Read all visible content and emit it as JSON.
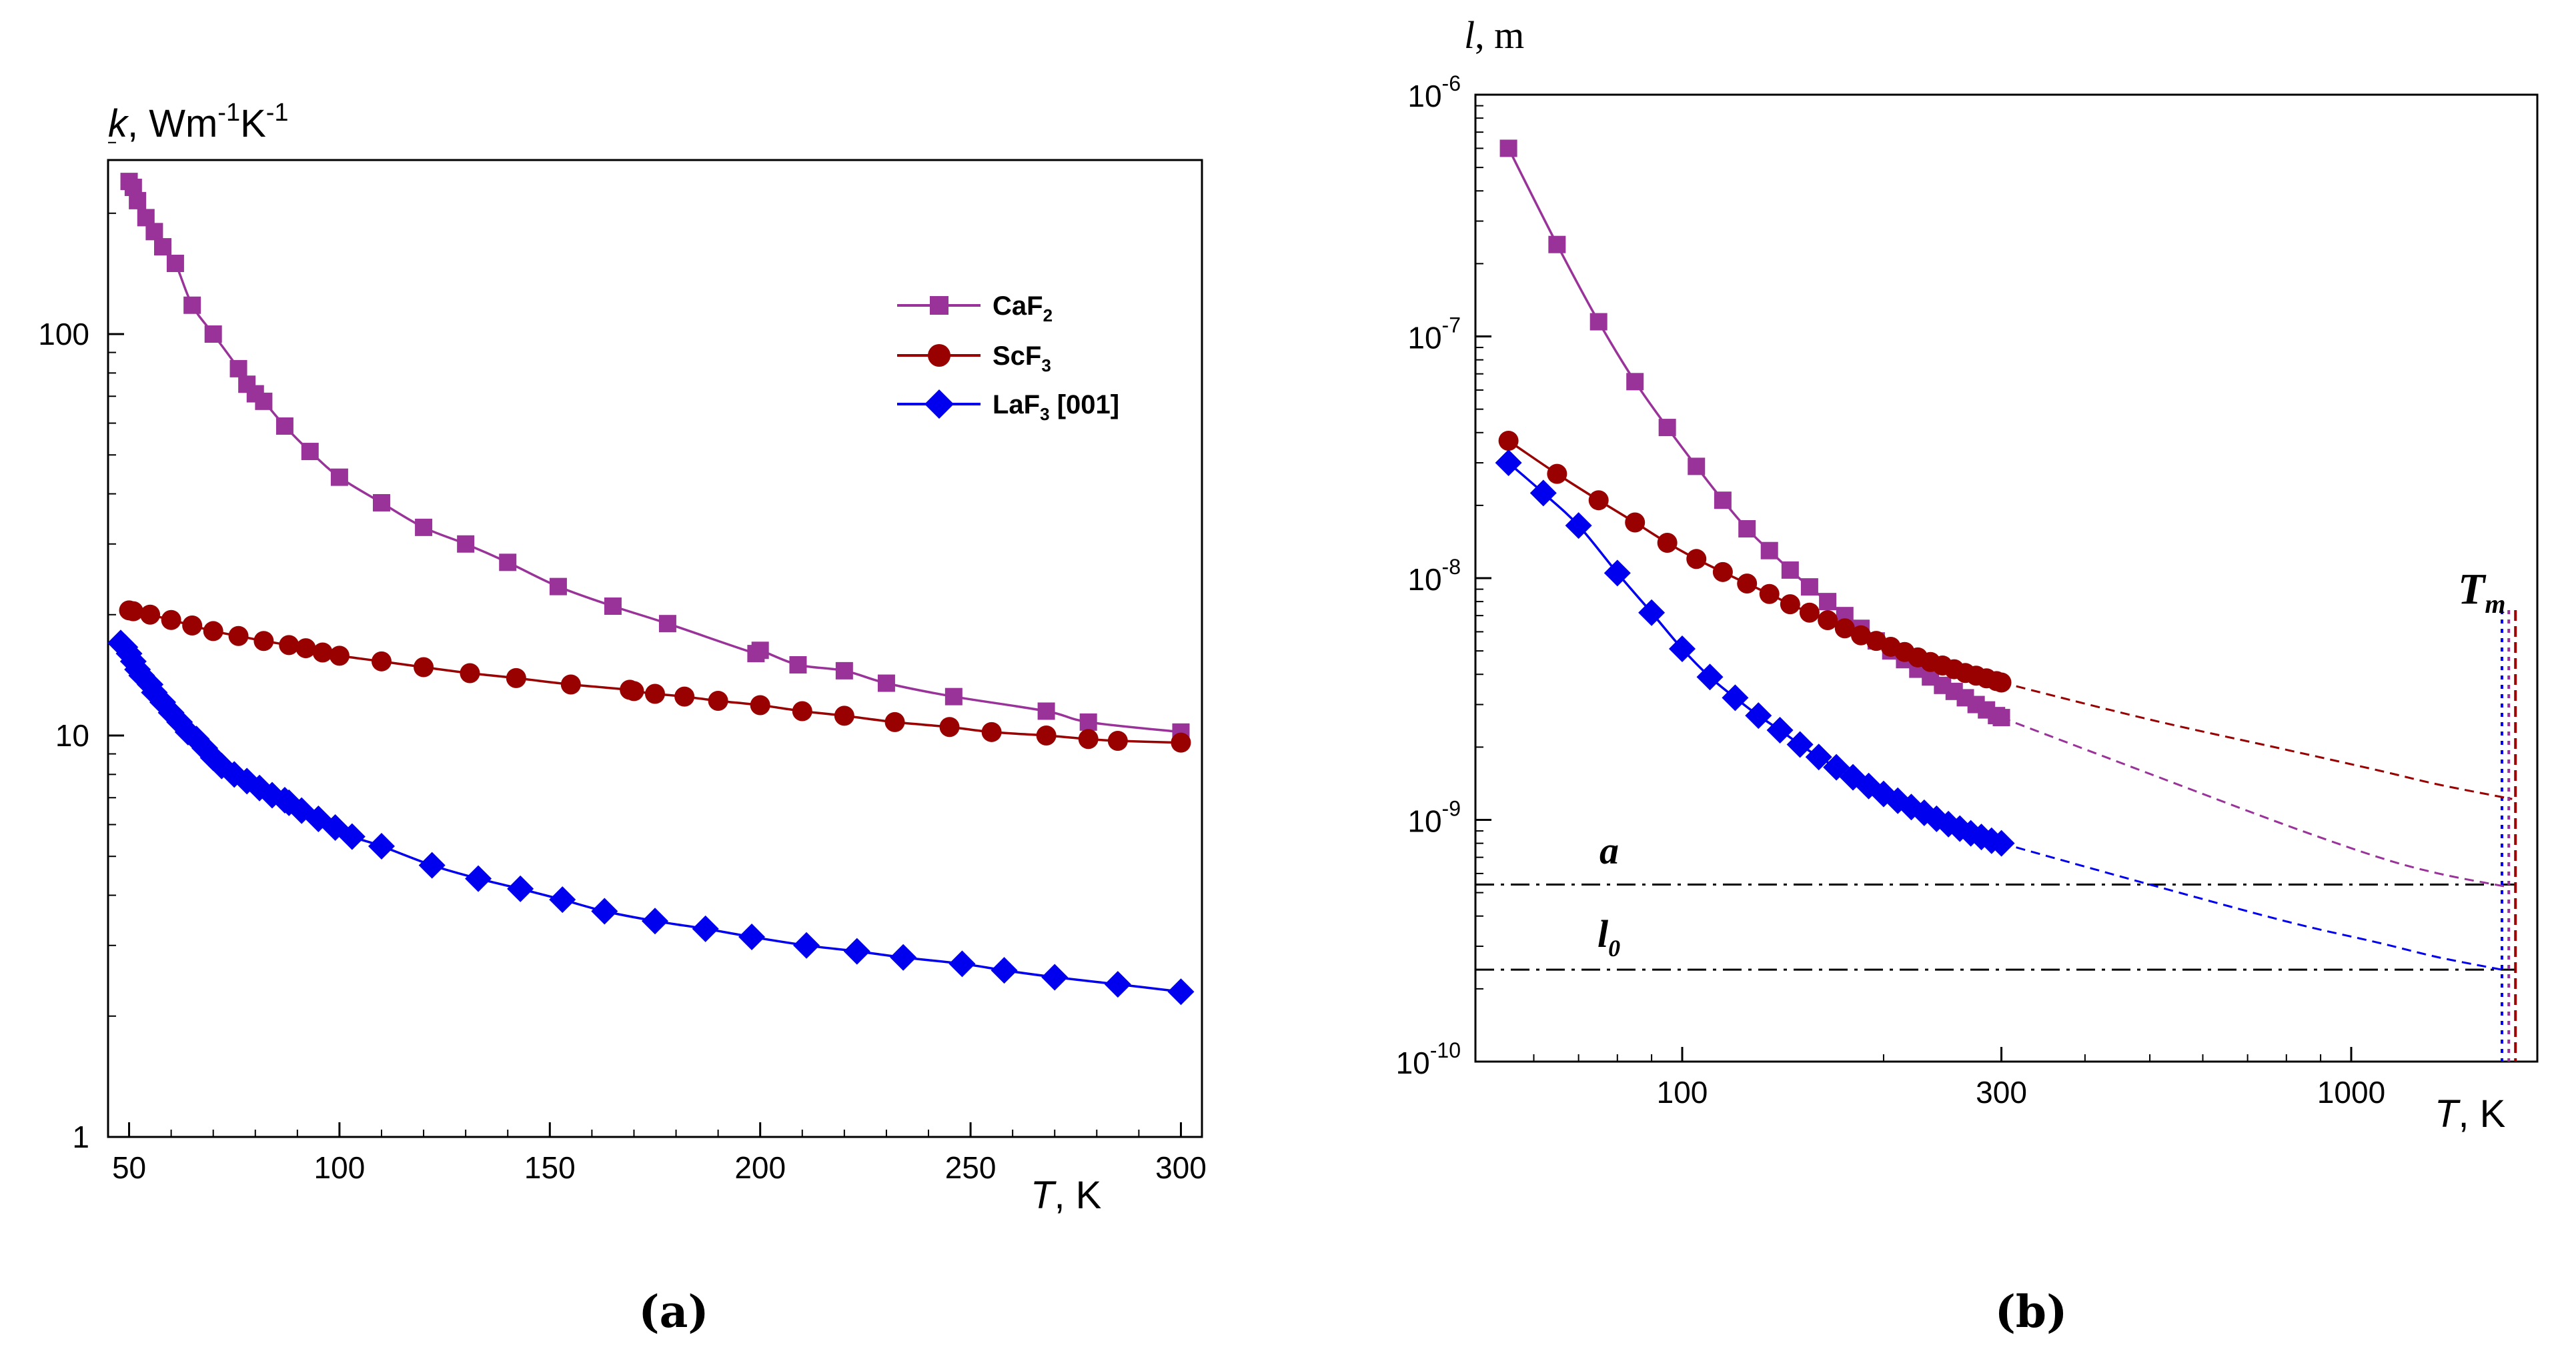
{
  "panels": {
    "a": "(a)",
    "b": "(b)"
  },
  "chart_data": [
    {
      "type": "line",
      "panel": "(a)",
      "xscale": "linear",
      "yscale": "log",
      "xlim": [
        45,
        305
      ],
      "ylim": [
        1,
        300
      ],
      "xticks": [
        50,
        100,
        150,
        200,
        250,
        300
      ],
      "xtick_labels": [
        "50",
        "100",
        "150",
        "200",
        "250",
        "300"
      ],
      "yticks": [
        1,
        10,
        100
      ],
      "ytick_labels": [
        "1",
        "10",
        "100"
      ],
      "xlabel": {
        "var": "T",
        "unit": ", K"
      },
      "ylabel": {
        "var": "k",
        "unit": ", Wm",
        "exp1": "-1",
        "mid": "K",
        "exp2": "-1"
      },
      "legend_position": "top-right",
      "series": [
        {
          "name": "CaF",
          "sub": "2",
          "color": "#993399",
          "marker": "square",
          "x": [
            50,
            51,
            52,
            54,
            56,
            58,
            61,
            65,
            70,
            76,
            78,
            80,
            82,
            87,
            93,
            100,
            110,
            120,
            130,
            140,
            152,
            165,
            178,
            199,
            200,
            209,
            220,
            230,
            246,
            268,
            278,
            300
          ],
          "y": [
            240,
            232,
            215,
            195,
            180,
            165,
            150,
            118,
            100,
            82,
            75,
            71,
            68,
            59,
            51,
            44,
            38,
            33,
            30,
            27,
            23.5,
            21,
            19,
            16,
            16.3,
            15,
            14.5,
            13.5,
            12.5,
            11.5,
            10.8,
            10.2
          ]
        },
        {
          "name": "ScF",
          "sub": "3",
          "color": "#990000",
          "marker": "circle",
          "x": [
            50,
            51,
            55,
            60,
            65,
            70,
            76,
            82,
            88,
            92,
            96,
            100,
            110,
            120,
            131,
            142,
            155,
            169,
            170,
            175,
            182,
            190,
            200,
            210,
            220,
            232,
            245,
            255,
            268,
            278,
            285,
            300
          ],
          "y": [
            20.5,
            20.4,
            20,
            19.4,
            18.8,
            18.2,
            17.7,
            17.2,
            16.8,
            16.5,
            16.1,
            15.8,
            15.3,
            14.8,
            14.3,
            13.9,
            13.4,
            13,
            12.9,
            12.7,
            12.5,
            12.2,
            11.9,
            11.5,
            11.2,
            10.8,
            10.5,
            10.2,
            10,
            9.8,
            9.7,
            9.6
          ]
        },
        {
          "name": "LaF",
          "sub": "3",
          "suffix": " [001]",
          "color": "#0000ee",
          "marker": "diamond",
          "x": [
            48,
            49,
            50,
            51,
            52,
            53,
            55,
            56,
            58,
            60,
            62,
            64,
            66,
            68,
            70,
            72,
            75,
            78,
            81,
            84,
            87,
            88,
            91,
            95,
            99,
            103,
            110,
            122,
            133,
            143,
            153,
            163,
            175,
            187,
            198,
            211,
            223,
            234,
            248,
            258,
            270,
            285,
            300
          ],
          "y": [
            17,
            16.6,
            16,
            15.3,
            14.6,
            14.1,
            13.4,
            12.8,
            12.1,
            11.4,
            10.8,
            10.2,
            9.8,
            9.3,
            8.8,
            8.4,
            8,
            7.7,
            7.4,
            7.1,
            6.9,
            6.8,
            6.5,
            6.2,
            5.9,
            5.6,
            5.3,
            4.75,
            4.4,
            4.15,
            3.9,
            3.65,
            3.45,
            3.3,
            3.15,
            3,
            2.9,
            2.8,
            2.7,
            2.6,
            2.5,
            2.4,
            2.3
          ]
        }
      ]
    },
    {
      "type": "line",
      "panel": "(b)",
      "xscale": "log",
      "yscale": "log",
      "xlim": [
        50,
        1800
      ],
      "ylim": [
        1e-10,
        1e-06
      ],
      "xticks": [
        100,
        300,
        1000
      ],
      "xtick_labels": [
        "100",
        "300",
        "1000"
      ],
      "yticks": [
        1e-10,
        1e-09,
        1e-08,
        1e-07,
        1e-06
      ],
      "ytick_labels": [
        {
          "base": "10",
          "exp": "-10"
        },
        {
          "base": "10",
          "exp": "-9"
        },
        {
          "base": "10",
          "exp": "-8"
        },
        {
          "base": "10",
          "exp": "-7"
        },
        {
          "base": "10",
          "exp": "-6"
        }
      ],
      "xlabel": {
        "var": "T",
        "unit": ", K"
      },
      "ylabel": {
        "var": "l",
        "unit": ", m"
      },
      "series": [
        {
          "name": "CaF2",
          "color": "#993399",
          "marker": "square",
          "x": [
            55,
            65,
            75,
            85,
            95,
            105,
            115,
            125,
            135,
            145,
            155,
            165,
            175,
            185,
            195,
            205,
            215,
            225,
            235,
            245,
            255,
            265,
            275,
            285,
            295,
            300
          ],
          "y": [
            6e-07,
            2.4e-07,
            1.15e-07,
            6.5e-08,
            4.2e-08,
            2.9e-08,
            2.1e-08,
            1.6e-08,
            1.3e-08,
            1.08e-08,
            9.2e-09,
            8e-09,
            7e-09,
            6.2e-09,
            5.5e-09,
            5e-09,
            4.6e-09,
            4.2e-09,
            3.9e-09,
            3.6e-09,
            3.4e-09,
            3.2e-09,
            3e-09,
            2.85e-09,
            2.7e-09,
            2.65e-09
          ],
          "extrapolation": {
            "x": [
              300,
              500,
              800,
              1100,
              1350,
              1700
            ],
            "y": [
              2.65e-09,
              1.55e-09,
              9.5e-10,
              7e-10,
              6e-10,
              5.3e-10
            ]
          }
        },
        {
          "name": "ScF3",
          "color": "#990000",
          "marker": "circle",
          "x": [
            55,
            65,
            75,
            85,
            95,
            105,
            115,
            125,
            135,
            145,
            155,
            165,
            175,
            185,
            195,
            205,
            215,
            225,
            235,
            245,
            255,
            265,
            275,
            285,
            295,
            300
          ],
          "y": [
            3.7e-08,
            2.7e-08,
            2.1e-08,
            1.7e-08,
            1.4e-08,
            1.2e-08,
            1.06e-08,
            9.5e-09,
            8.6e-09,
            7.8e-09,
            7.2e-09,
            6.7e-09,
            6.2e-09,
            5.8e-09,
            5.5e-09,
            5.2e-09,
            4.95e-09,
            4.7e-09,
            4.5e-09,
            4.35e-09,
            4.2e-09,
            4.05e-09,
            3.95e-09,
            3.85e-09,
            3.75e-09,
            3.7e-09
          ],
          "extrapolation": {
            "x": [
              300,
              500,
              800,
              1100,
              1350,
              1740
            ],
            "y": [
              3.7e-09,
              2.6e-09,
              1.95e-09,
              1.6e-09,
              1.4e-09,
              1.22e-09
            ]
          }
        },
        {
          "name": "LaF3 [001]",
          "color": "#0000ee",
          "marker": "diamond",
          "x": [
            55,
            62,
            70,
            80,
            90,
            100,
            110,
            120,
            130,
            140,
            150,
            160,
            170,
            180,
            190,
            200,
            210,
            220,
            230,
            240,
            250,
            260,
            270,
            280,
            290,
            300
          ],
          "y": [
            3e-08,
            2.25e-08,
            1.65e-08,
            1.05e-08,
            7.2e-09,
            5.1e-09,
            3.9e-09,
            3.2e-09,
            2.7e-09,
            2.35e-09,
            2.05e-09,
            1.82e-09,
            1.65e-09,
            1.5e-09,
            1.38e-09,
            1.28e-09,
            1.2e-09,
            1.13e-09,
            1.07e-09,
            1.01e-09,
            9.6e-10,
            9.2e-10,
            8.8e-10,
            8.5e-10,
            8.2e-10,
            8e-10
          ],
          "extrapolation": {
            "x": [
              300,
              500,
              800,
              1100,
              1350,
              1680
            ],
            "y": [
              8e-10,
              5.4e-10,
              3.8e-10,
              3.1e-10,
              2.7e-10,
              2.4e-10
            ]
          }
        }
      ],
      "reference_lines": [
        {
          "label": "a",
          "value": 5.4e-10
        },
        {
          "label": "l",
          "sub": "0",
          "value": 2.4e-10
        }
      ],
      "melting_lines": {
        "label": "T",
        "sub": "m",
        "x": [
          1680,
          1720,
          1760
        ],
        "colors": [
          "#0000ee",
          "#993399",
          "#990000"
        ]
      }
    }
  ]
}
